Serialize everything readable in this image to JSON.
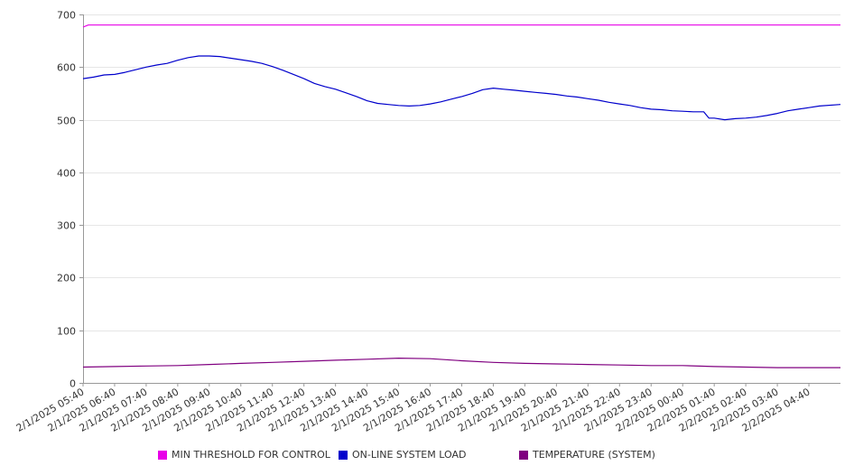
{
  "chart_data": {
    "type": "line",
    "ylim": [
      0,
      700
    ],
    "y_ticks": [
      0,
      100,
      200,
      300,
      400,
      500,
      600,
      700
    ],
    "x_ticks": [
      "2/1/2025 05:40",
      "2/1/2025 06:40",
      "2/1/2025 07:40",
      "2/1/2025 08:40",
      "2/1/2025 09:40",
      "2/1/2025 10:40",
      "2/1/2025 11:40",
      "2/1/2025 12:40",
      "2/1/2025 13:40",
      "2/1/2025 14:40",
      "2/1/2025 15:40",
      "2/1/2025 16:40",
      "2/1/2025 17:40",
      "2/1/2025 18:40",
      "2/1/2025 19:40",
      "2/1/2025 20:40",
      "2/1/2025 21:40",
      "2/1/2025 22:40",
      "2/1/2025 23:40",
      "2/2/2025 00:40",
      "2/2/2025 01:40",
      "2/2/2025 02:40",
      "2/2/2025 03:40",
      "2/2/2025 04:40"
    ],
    "grid": true,
    "legend_position": "bottom",
    "series": [
      {
        "name": "MIN THRESHOLD FOR CONTROL",
        "color": "#e800e8",
        "points": [
          [
            "2/1/2025 05:40",
            676
          ],
          [
            "2/1/2025 05:50",
            680
          ],
          [
            "2/1/2025 07:40",
            680
          ],
          [
            "2/1/2025 11:40",
            680
          ],
          [
            "2/1/2025 15:40",
            680
          ],
          [
            "2/1/2025 19:40",
            680
          ],
          [
            "2/1/2025 23:40",
            680
          ],
          [
            "2/2/2025 03:40",
            680
          ],
          [
            "2/2/2025 05:40",
            680
          ]
        ]
      },
      {
        "name": "ON-LINE SYSTEM LOAD",
        "color": "#0000cc",
        "points": [
          [
            "2/1/2025 05:40",
            578
          ],
          [
            "2/1/2025 06:00",
            581
          ],
          [
            "2/1/2025 06:20",
            585
          ],
          [
            "2/1/2025 06:40",
            586
          ],
          [
            "2/1/2025 07:00",
            590
          ],
          [
            "2/1/2025 07:20",
            595
          ],
          [
            "2/1/2025 07:40",
            600
          ],
          [
            "2/1/2025 08:00",
            604
          ],
          [
            "2/1/2025 08:20",
            607
          ],
          [
            "2/1/2025 08:40",
            613
          ],
          [
            "2/1/2025 09:00",
            618
          ],
          [
            "2/1/2025 09:20",
            621
          ],
          [
            "2/1/2025 09:40",
            621
          ],
          [
            "2/1/2025 10:00",
            620
          ],
          [
            "2/1/2025 10:20",
            617
          ],
          [
            "2/1/2025 10:40",
            614
          ],
          [
            "2/1/2025 11:00",
            611
          ],
          [
            "2/1/2025 11:20",
            607
          ],
          [
            "2/1/2025 11:40",
            601
          ],
          [
            "2/1/2025 12:00",
            594
          ],
          [
            "2/1/2025 12:20",
            586
          ],
          [
            "2/1/2025 12:40",
            578
          ],
          [
            "2/1/2025 13:00",
            569
          ],
          [
            "2/1/2025 13:20",
            563
          ],
          [
            "2/1/2025 13:40",
            558
          ],
          [
            "2/1/2025 14:00",
            551
          ],
          [
            "2/1/2025 14:20",
            544
          ],
          [
            "2/1/2025 14:40",
            536
          ],
          [
            "2/1/2025 15:00",
            531
          ],
          [
            "2/1/2025 15:20",
            529
          ],
          [
            "2/1/2025 15:40",
            527
          ],
          [
            "2/1/2025 16:00",
            526
          ],
          [
            "2/1/2025 16:20",
            527
          ],
          [
            "2/1/2025 16:40",
            530
          ],
          [
            "2/1/2025 17:00",
            534
          ],
          [
            "2/1/2025 17:20",
            539
          ],
          [
            "2/1/2025 17:40",
            544
          ],
          [
            "2/1/2025 18:00",
            550
          ],
          [
            "2/1/2025 18:20",
            557
          ],
          [
            "2/1/2025 18:40",
            560
          ],
          [
            "2/1/2025 19:00",
            558
          ],
          [
            "2/1/2025 19:20",
            556
          ],
          [
            "2/1/2025 19:40",
            554
          ],
          [
            "2/1/2025 20:00",
            552
          ],
          [
            "2/1/2025 20:20",
            550
          ],
          [
            "2/1/2025 20:40",
            548
          ],
          [
            "2/1/2025 21:00",
            545
          ],
          [
            "2/1/2025 21:20",
            543
          ],
          [
            "2/1/2025 21:40",
            540
          ],
          [
            "2/1/2025 22:00",
            537
          ],
          [
            "2/1/2025 22:20",
            533
          ],
          [
            "2/1/2025 22:40",
            530
          ],
          [
            "2/1/2025 23:00",
            527
          ],
          [
            "2/1/2025 23:20",
            523
          ],
          [
            "2/1/2025 23:40",
            520
          ],
          [
            "2/2/2025 00:00",
            519
          ],
          [
            "2/2/2025 00:20",
            517
          ],
          [
            "2/2/2025 00:40",
            516
          ],
          [
            "2/2/2025 01:00",
            515
          ],
          [
            "2/2/2025 01:20",
            515
          ],
          [
            "2/2/2025 01:30",
            503
          ],
          [
            "2/2/2025 01:40",
            503
          ],
          [
            "2/2/2025 02:00",
            500
          ],
          [
            "2/2/2025 02:20",
            502
          ],
          [
            "2/2/2025 02:40",
            503
          ],
          [
            "2/2/2025 03:00",
            505
          ],
          [
            "2/2/2025 03:20",
            508
          ],
          [
            "2/2/2025 03:40",
            512
          ],
          [
            "2/2/2025 04:00",
            517
          ],
          [
            "2/2/2025 04:20",
            520
          ],
          [
            "2/2/2025 04:40",
            523
          ],
          [
            "2/2/2025 05:00",
            526
          ],
          [
            "2/2/2025 05:40",
            529
          ]
        ]
      },
      {
        "name": "TEMPERATURE (SYSTEM)",
        "color": "#800080",
        "points": [
          [
            "2/1/2025 05:40",
            30
          ],
          [
            "2/1/2025 06:40",
            31
          ],
          [
            "2/1/2025 07:40",
            32
          ],
          [
            "2/1/2025 08:40",
            33
          ],
          [
            "2/1/2025 09:40",
            35
          ],
          [
            "2/1/2025 10:40",
            37
          ],
          [
            "2/1/2025 11:40",
            39
          ],
          [
            "2/1/2025 12:40",
            41
          ],
          [
            "2/1/2025 13:40",
            43
          ],
          [
            "2/1/2025 14:40",
            45
          ],
          [
            "2/1/2025 15:40",
            47
          ],
          [
            "2/1/2025 16:40",
            46
          ],
          [
            "2/1/2025 17:40",
            42
          ],
          [
            "2/1/2025 18:40",
            39
          ],
          [
            "2/1/2025 19:40",
            37
          ],
          [
            "2/1/2025 20:40",
            36
          ],
          [
            "2/1/2025 21:40",
            35
          ],
          [
            "2/1/2025 22:40",
            34
          ],
          [
            "2/1/2025 23:40",
            33
          ],
          [
            "2/2/2025 00:40",
            33
          ],
          [
            "2/2/2025 01:40",
            31
          ],
          [
            "2/2/2025 02:40",
            30
          ],
          [
            "2/2/2025 03:40",
            29
          ],
          [
            "2/2/2025 04:40",
            29
          ],
          [
            "2/2/2025 05:40",
            29
          ]
        ]
      }
    ]
  }
}
